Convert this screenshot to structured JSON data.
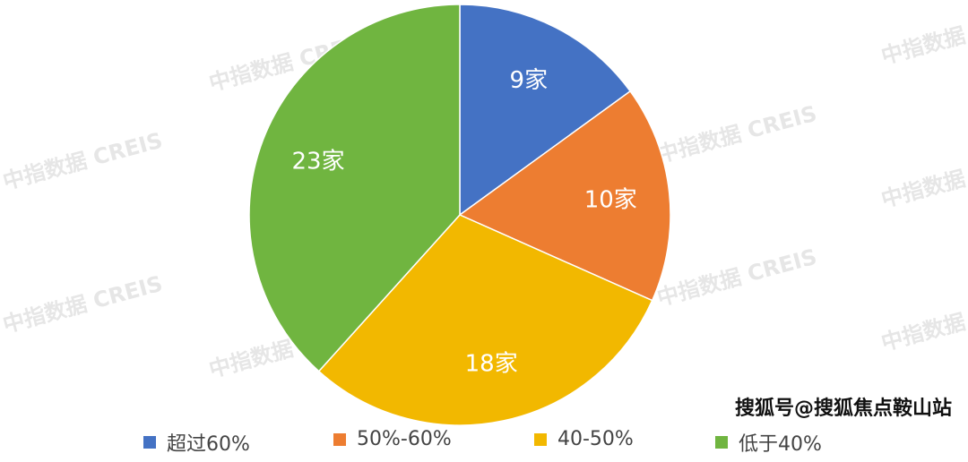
{
  "chart_data": {
    "type": "pie",
    "categories": [
      "超过60%",
      "50%-60%",
      "40-50%",
      "低于40%"
    ],
    "values": [
      9,
      10,
      18,
      23
    ],
    "data_labels": [
      "9家",
      "10家",
      "18家",
      "23家"
    ],
    "colors": [
      "#4472C4",
      "#ED7D31",
      "#F2B800",
      "#70B540"
    ],
    "legend_position": "bottom"
  },
  "watermark": "中指数据 CREIS",
  "credit": "搜狐号@搜狐焦点鞍山站"
}
